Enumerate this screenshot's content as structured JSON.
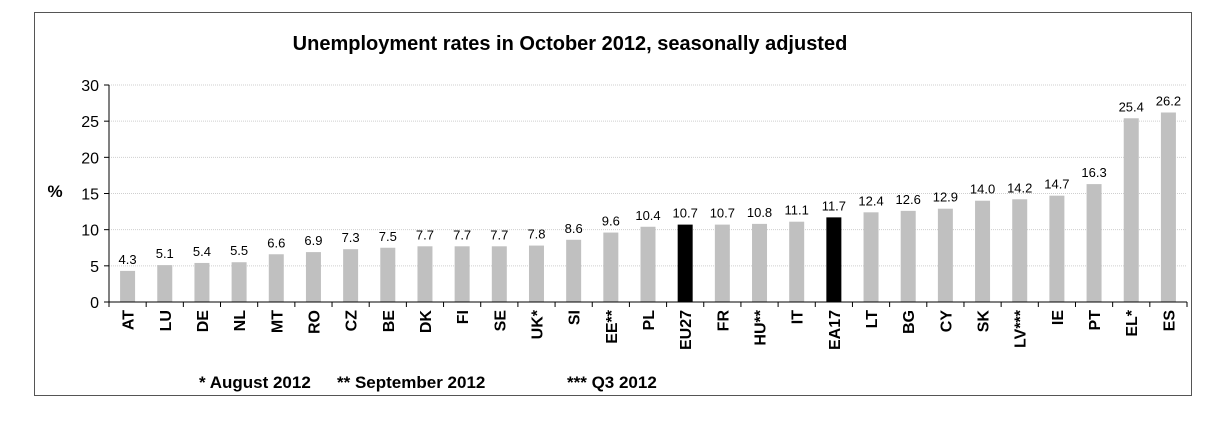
{
  "chart_data": {
    "type": "bar",
    "title": "Unemployment rates in October 2012, seasonally adjusted",
    "ylabel": "%",
    "xlabel": "",
    "ylim": [
      0,
      30
    ],
    "yticks": [
      0,
      5,
      10,
      15,
      20,
      25,
      30
    ],
    "grid": true,
    "categories": [
      "AT",
      "LU",
      "DE",
      "NL",
      "MT",
      "RO",
      "CZ",
      "BE",
      "DK",
      "FI",
      "SE",
      "UK*",
      "SI",
      "EE**",
      "PL",
      "EU27",
      "FR",
      "HU**",
      "IT",
      "EA17",
      "LT",
      "BG",
      "CY",
      "SK",
      "LV***",
      "IE",
      "PT",
      "EL*",
      "ES"
    ],
    "values": [
      4.3,
      5.1,
      5.4,
      5.5,
      6.6,
      6.9,
      7.3,
      7.5,
      7.7,
      7.7,
      7.7,
      7.8,
      8.6,
      9.6,
      10.4,
      10.7,
      10.7,
      10.8,
      11.1,
      11.7,
      12.4,
      12.6,
      12.9,
      14.0,
      14.2,
      14.7,
      16.3,
      25.4,
      26.2
    ],
    "value_labels": [
      "4.3",
      "5.1",
      "5.4",
      "5.5",
      "6.6",
      "6.9",
      "7.3",
      "7.5",
      "7.7",
      "7.7",
      "7.7",
      "7.8",
      "8.6",
      "9.6",
      "10.4",
      "10.7",
      "10.7",
      "10.8",
      "11.1",
      "11.7",
      "12.4",
      "12.6",
      "12.9",
      "14.0",
      "14.2",
      "14.7",
      "16.3",
      "25.4",
      "26.2"
    ],
    "highlight_categories": [
      "EU27",
      "EA17"
    ],
    "colors": {
      "bar": "#c0c0c0",
      "highlight": "#000000",
      "grid": "#cfcfcf",
      "axis": "#000000"
    },
    "footnotes": [
      "* August 2012",
      "** September 2012",
      "*** Q3 2012"
    ]
  }
}
